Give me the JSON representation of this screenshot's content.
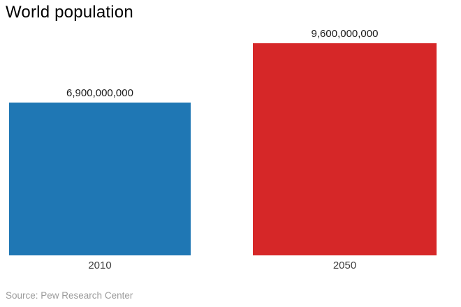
{
  "chart_data": {
    "type": "bar",
    "title": "World population",
    "categories": [
      "2010",
      "2050"
    ],
    "values": [
      6900000000,
      9600000000
    ],
    "value_labels": [
      "6,900,000,000",
      "9,600,000,000"
    ],
    "colors": [
      "#1f77b4",
      "#d62728"
    ],
    "ylim": [
      0,
      9600000000
    ],
    "grid": false,
    "legend": false,
    "source": "Source: Pew Research Center"
  }
}
